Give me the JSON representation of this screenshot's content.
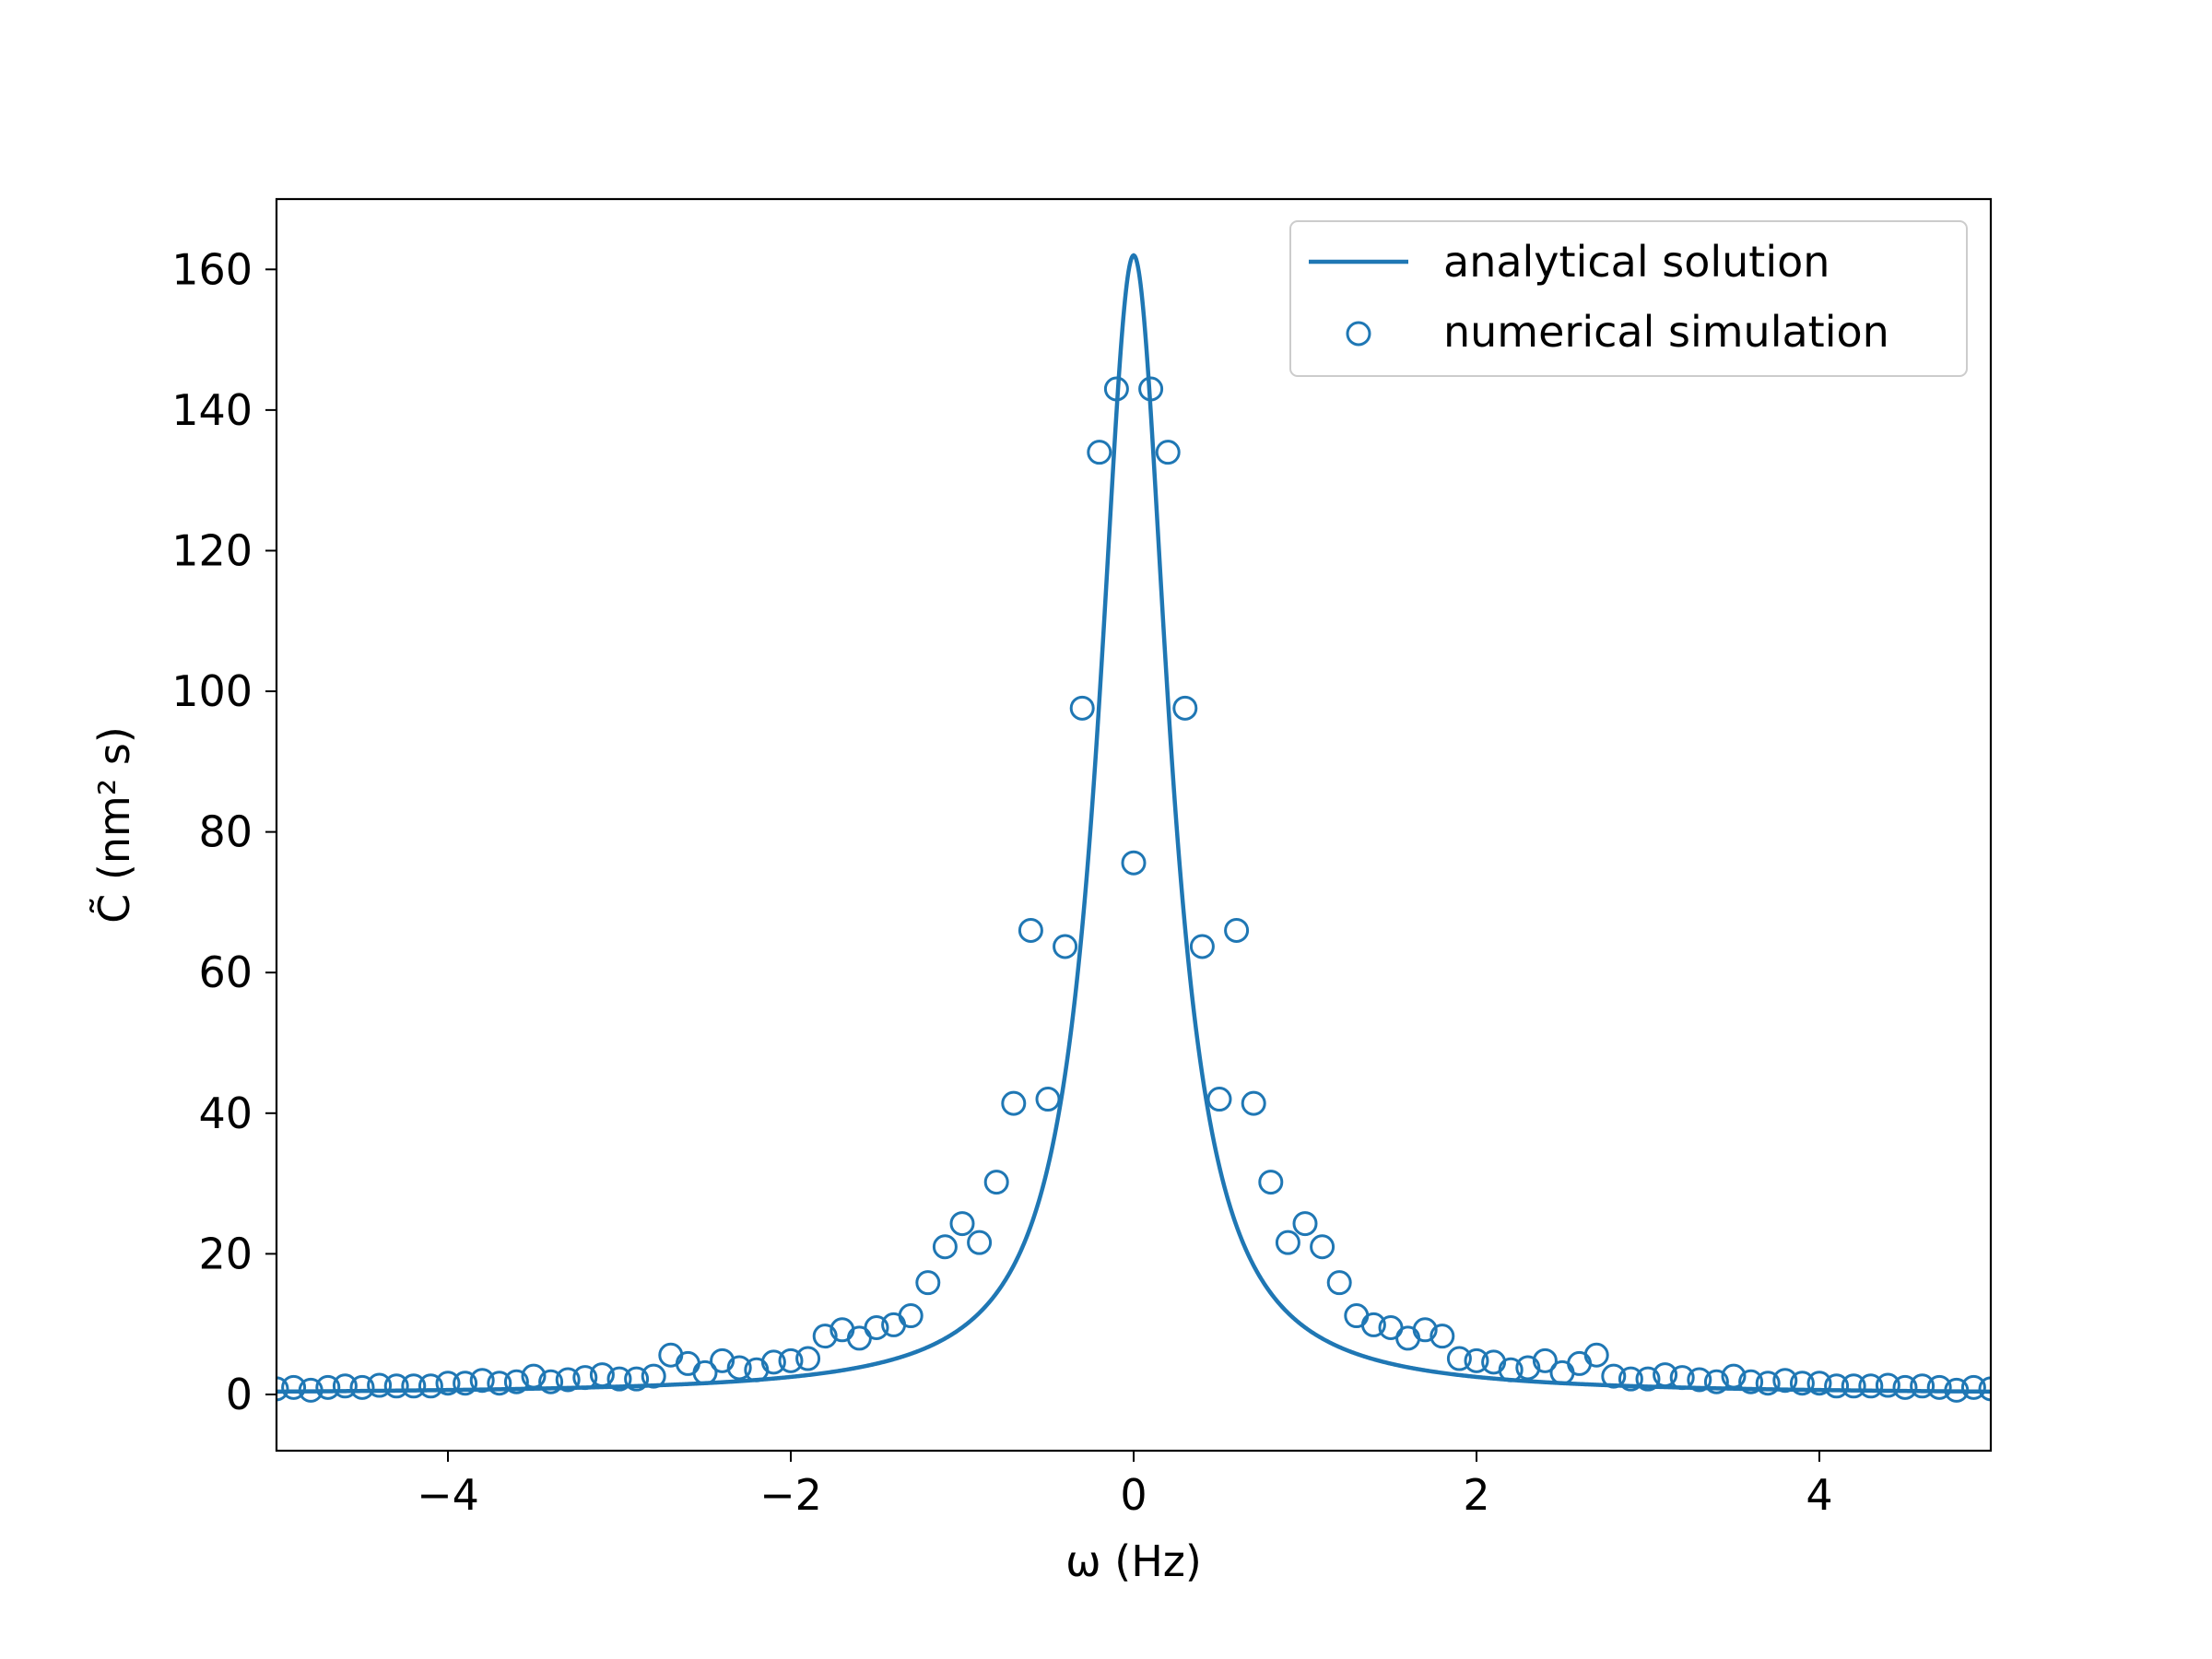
{
  "chart_data": {
    "type": "scatter",
    "title": "",
    "xlabel": "ω (Hz)",
    "ylabel": "C̃ (nm² s)",
    "xlim": [
      -5,
      5
    ],
    "ylim": [
      -8,
      170
    ],
    "x_ticks": [
      -4,
      -2,
      0,
      2,
      4
    ],
    "x_tick_labels": [
      "−4",
      "−2",
      "0",
      "2",
      "4"
    ],
    "y_ticks": [
      0,
      20,
      40,
      60,
      80,
      100,
      120,
      140,
      160
    ],
    "y_tick_labels": [
      "0",
      "20",
      "40",
      "60",
      "80",
      "100",
      "120",
      "140",
      "160"
    ],
    "grid": false,
    "legend_position": "top-right",
    "color": "#1f77b4",
    "series": [
      {
        "name": "analytical solution",
        "style": "line",
        "formula": "162 / (1 + (ω/0.25)^2)",
        "peak": 162,
        "half_width": 0.25
      },
      {
        "name": "numerical simulation",
        "style": "open-circle",
        "x": [
          -5.0,
          -4.9,
          -4.8,
          -4.7,
          -4.6,
          -4.5,
          -4.4,
          -4.3,
          -4.2,
          -4.1,
          -4.0,
          -3.9,
          -3.8,
          -3.7,
          -3.6,
          -3.5,
          -3.4,
          -3.3,
          -3.2,
          -3.1,
          -3.0,
          -2.9,
          -2.8,
          -2.7,
          -2.6,
          -2.5,
          -2.4,
          -2.3,
          -2.2,
          -2.1,
          -2.0,
          -1.9,
          -1.8,
          -1.7,
          -1.6,
          -1.5,
          -1.4,
          -1.3,
          -1.2,
          -1.1,
          -1.0,
          -0.9,
          -0.8,
          -0.7,
          -0.6,
          -0.5,
          -0.4,
          -0.3,
          -0.2,
          -0.1,
          0.0,
          0.1,
          0.2,
          0.3,
          0.4,
          0.5,
          0.6,
          0.7,
          0.8,
          0.9,
          1.0,
          1.1,
          1.2,
          1.3,
          1.4,
          1.5,
          1.6,
          1.7,
          1.8,
          1.9,
          2.0,
          2.1,
          2.2,
          2.3,
          2.4,
          2.5,
          2.6,
          2.7,
          2.8,
          2.9,
          3.0,
          3.1,
          3.2,
          3.3,
          3.4,
          3.5,
          3.6,
          3.7,
          3.8,
          3.9,
          4.0,
          4.1,
          4.2,
          4.3,
          4.4,
          4.5,
          4.6,
          4.7,
          4.8,
          4.9,
          5.0
        ],
        "y": [
          0.8,
          1.0,
          0.6,
          1.0,
          1.2,
          1.0,
          1.3,
          1.2,
          1.2,
          1.2,
          1.6,
          1.6,
          2.0,
          1.6,
          1.8,
          2.6,
          1.8,
          2.1,
          2.4,
          2.8,
          2.2,
          2.2,
          2.6,
          5.6,
          4.4,
          3.1,
          4.8,
          3.8,
          3.5,
          4.6,
          4.8,
          5.1,
          8.3,
          9.2,
          8.0,
          9.5,
          9.9,
          11.2,
          15.9,
          21.0,
          24.3,
          21.6,
          30.2,
          41.4,
          66.0,
          42.0,
          63.7,
          97.6,
          134.0,
          143.0,
          75.6,
          143.0,
          134.0,
          97.6,
          63.7,
          42.0,
          66.0,
          41.4,
          30.2,
          21.6,
          24.3,
          21.0,
          15.9,
          11.2,
          9.9,
          9.5,
          8.0,
          9.2,
          8.3,
          5.1,
          4.8,
          4.6,
          3.5,
          3.8,
          4.8,
          3.1,
          4.4,
          5.6,
          2.6,
          2.2,
          2.2,
          2.8,
          2.4,
          2.1,
          1.8,
          2.6,
          1.8,
          1.6,
          2.0,
          1.6,
          1.6,
          1.2,
          1.2,
          1.2,
          1.3,
          1.0,
          1.2,
          1.0,
          0.6,
          1.0,
          0.8
        ]
      }
    ]
  }
}
